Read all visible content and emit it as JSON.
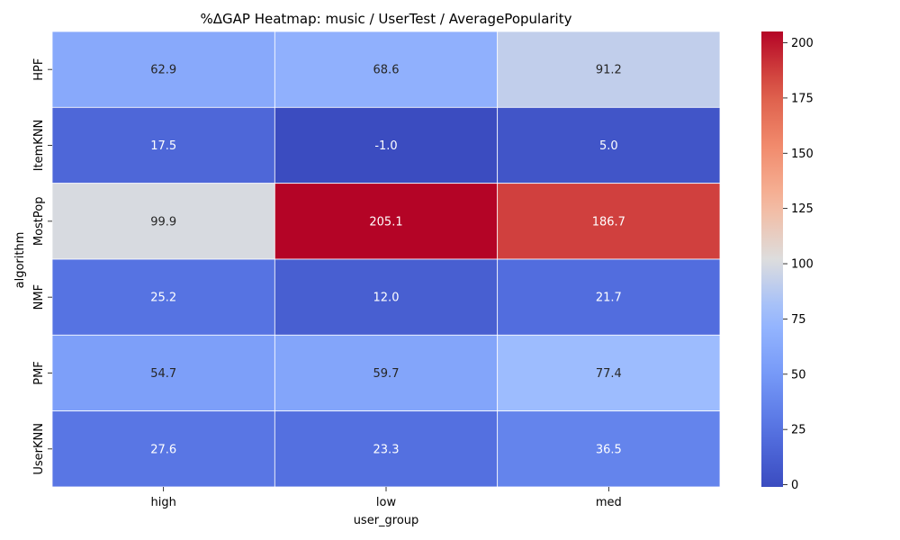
{
  "chart_data": {
    "type": "heatmap",
    "title": "%ΔGAP Heatmap: music / UserTest / AveragePopularity",
    "xlabel": "user_group",
    "ylabel": "algorithm",
    "x_categories": [
      "high",
      "low",
      "med"
    ],
    "y_categories": [
      "HPF",
      "ItemKNN",
      "MostPop",
      "NMF",
      "PMF",
      "UserKNN"
    ],
    "values": [
      [
        62.9,
        68.6,
        91.2
      ],
      [
        17.5,
        -1.0,
        5.0
      ],
      [
        99.9,
        205.1,
        186.7
      ],
      [
        25.2,
        12.0,
        21.7
      ],
      [
        54.7,
        59.7,
        77.4
      ],
      [
        27.6,
        23.3,
        36.5
      ]
    ],
    "value_labels": [
      [
        "62.9",
        "68.6",
        "91.2"
      ],
      [
        "17.5",
        "-1.0",
        "5.0"
      ],
      [
        "99.9",
        "205.1",
        "186.7"
      ],
      [
        "25.2",
        "12.0",
        "21.7"
      ],
      [
        "54.7",
        "59.7",
        "77.4"
      ],
      [
        "27.6",
        "23.3",
        "36.5"
      ]
    ],
    "colormap": "coolwarm",
    "vmin": -1.0,
    "vmax": 205.1,
    "colorbar": {
      "ticks": [
        0,
        25,
        50,
        75,
        100,
        125,
        150,
        175,
        200
      ],
      "tick_labels": [
        "0",
        "25",
        "50",
        "75",
        "100",
        "125",
        "150",
        "175",
        "200"
      ]
    }
  }
}
